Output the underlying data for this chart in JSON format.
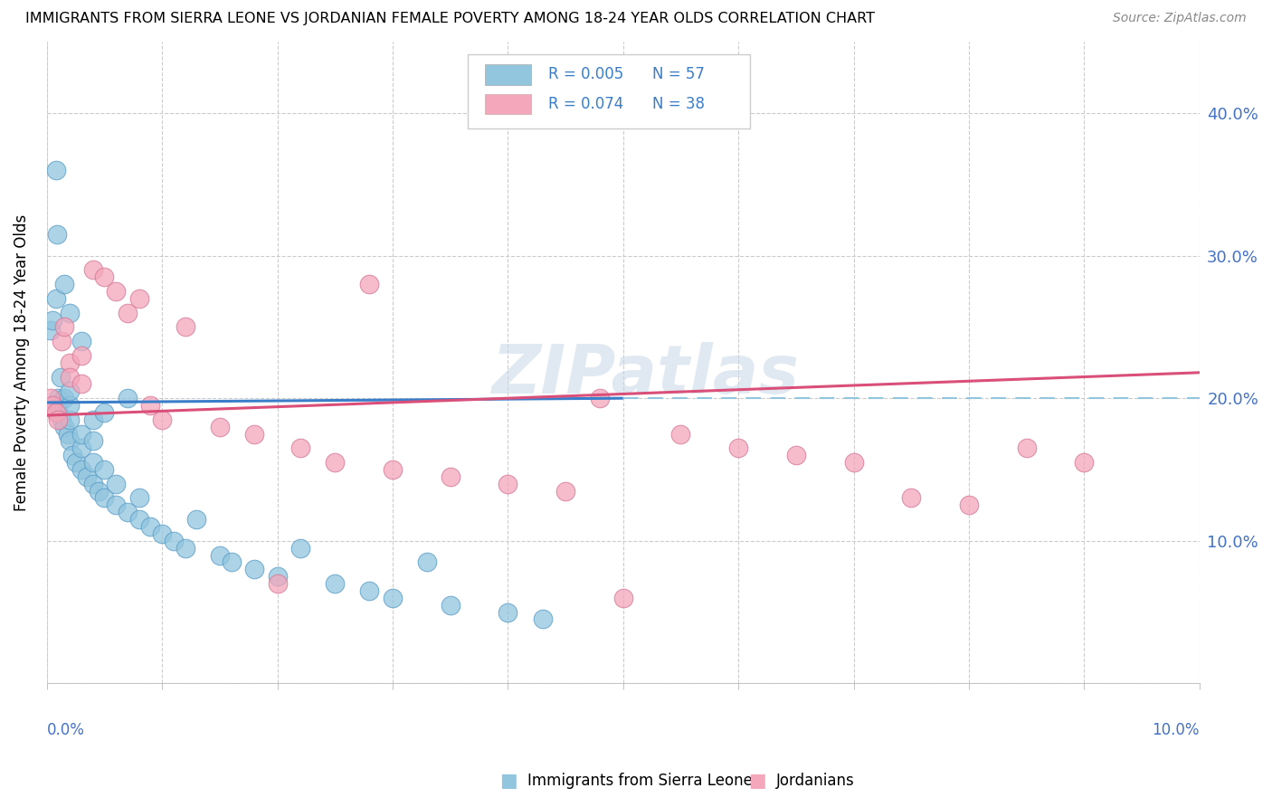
{
  "title": "IMMIGRANTS FROM SIERRA LEONE VS JORDANIAN FEMALE POVERTY AMONG 18-24 YEAR OLDS CORRELATION CHART",
  "source": "Source: ZipAtlas.com",
  "ylabel": "Female Poverty Among 18-24 Year Olds",
  "xlim": [
    0.0,
    0.1
  ],
  "ylim": [
    0.0,
    0.45
  ],
  "yticks": [
    0.0,
    0.1,
    0.2,
    0.3,
    0.4
  ],
  "ytick_labels": [
    "",
    "10.0%",
    "20.0%",
    "30.0%",
    "40.0%"
  ],
  "legend_r1": "R = 0.005",
  "legend_n1": "N = 57",
  "legend_r2": "R = 0.074",
  "legend_n2": "N = 38",
  "blue_color": "#92c5de",
  "pink_color": "#f4a6ba",
  "blue_line_color": "#3a7dc9",
  "pink_line_color": "#d94f7a",
  "blue_dash_color": "#92c5de",
  "watermark": "ZIPatlas",
  "blue_x": [
    0.0003,
    0.0005,
    0.0008,
    0.001,
    0.001,
    0.001,
    0.0012,
    0.0013,
    0.0015,
    0.0015,
    0.0018,
    0.002,
    0.002,
    0.002,
    0.002,
    0.0022,
    0.0025,
    0.003,
    0.003,
    0.003,
    0.0035,
    0.004,
    0.004,
    0.004,
    0.0045,
    0.005,
    0.005,
    0.006,
    0.006,
    0.007,
    0.007,
    0.008,
    0.008,
    0.009,
    0.01,
    0.011,
    0.012,
    0.013,
    0.015,
    0.016,
    0.018,
    0.02,
    0.022,
    0.025,
    0.028,
    0.03,
    0.033,
    0.035,
    0.04,
    0.043,
    0.0008,
    0.0009,
    0.0015,
    0.002,
    0.003,
    0.004,
    0.005
  ],
  "blue_y": [
    0.248,
    0.255,
    0.27,
    0.19,
    0.195,
    0.2,
    0.215,
    0.185,
    0.18,
    0.2,
    0.175,
    0.17,
    0.185,
    0.195,
    0.205,
    0.16,
    0.155,
    0.15,
    0.165,
    0.175,
    0.145,
    0.14,
    0.155,
    0.185,
    0.135,
    0.13,
    0.15,
    0.125,
    0.14,
    0.12,
    0.2,
    0.115,
    0.13,
    0.11,
    0.105,
    0.1,
    0.095,
    0.115,
    0.09,
    0.085,
    0.08,
    0.075,
    0.095,
    0.07,
    0.065,
    0.06,
    0.085,
    0.055,
    0.05,
    0.045,
    0.36,
    0.315,
    0.28,
    0.26,
    0.24,
    0.17,
    0.19
  ],
  "pink_x": [
    0.0003,
    0.0005,
    0.0008,
    0.001,
    0.0013,
    0.0015,
    0.002,
    0.002,
    0.003,
    0.003,
    0.004,
    0.005,
    0.006,
    0.007,
    0.008,
    0.009,
    0.01,
    0.012,
    0.015,
    0.018,
    0.022,
    0.025,
    0.03,
    0.035,
    0.04,
    0.045,
    0.05,
    0.06,
    0.065,
    0.07,
    0.075,
    0.08,
    0.085,
    0.09,
    0.02,
    0.028,
    0.048,
    0.055
  ],
  "pink_y": [
    0.2,
    0.195,
    0.19,
    0.185,
    0.24,
    0.25,
    0.225,
    0.215,
    0.23,
    0.21,
    0.29,
    0.285,
    0.275,
    0.26,
    0.27,
    0.195,
    0.185,
    0.25,
    0.18,
    0.175,
    0.165,
    0.155,
    0.15,
    0.145,
    0.14,
    0.135,
    0.06,
    0.165,
    0.16,
    0.155,
    0.13,
    0.125,
    0.165,
    0.155,
    0.07,
    0.28,
    0.2,
    0.175
  ]
}
